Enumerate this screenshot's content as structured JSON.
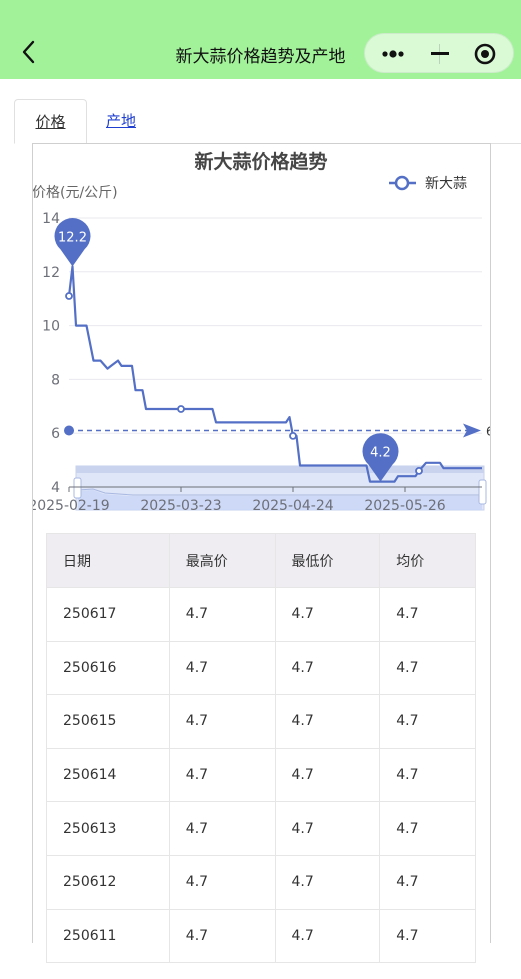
{
  "header": {
    "title": "新大蒜价格趋势及产地",
    "back_icon": "chevron-left-icon",
    "more_icon": "more-dots-icon",
    "minimize_icon": "minimize-icon",
    "close_icon": "target-close-icon",
    "bg_color": "#a2f29a"
  },
  "tabs": [
    {
      "label": "价格",
      "active": true
    },
    {
      "label": "产地",
      "active": false
    }
  ],
  "chart_data": {
    "type": "line",
    "title": "新大蒜价格趋势",
    "ylabel": "价格(元/公斤)",
    "legend": "新大蒜",
    "legend_position": "top-right",
    "ylim": [
      4,
      14
    ],
    "yticks": [
      4,
      6,
      8,
      10,
      12,
      14
    ],
    "xticks": [
      "2025-02-19",
      "2025-03-23",
      "2025-04-24",
      "2025-05-26"
    ],
    "series_color": "#5470c6",
    "max_marker": {
      "label": "12.2",
      "value": 12.2
    },
    "min_marker": {
      "label": "4.2",
      "value": 4.2
    },
    "average_line": {
      "value": 6.1,
      "label": "6"
    },
    "series": [
      {
        "name": "新大蒜",
        "points": [
          [
            "2025-02-19",
            11.1
          ],
          [
            "2025-02-20",
            12.2
          ],
          [
            "2025-02-21",
            10.0
          ],
          [
            "2025-02-24",
            10.0
          ],
          [
            "2025-02-26",
            8.7
          ],
          [
            "2025-02-28",
            8.7
          ],
          [
            "2025-03-02",
            8.4
          ],
          [
            "2025-03-03",
            8.5
          ],
          [
            "2025-03-05",
            8.7
          ],
          [
            "2025-03-06",
            8.5
          ],
          [
            "2025-03-09",
            8.5
          ],
          [
            "2025-03-10",
            7.6
          ],
          [
            "2025-03-12",
            7.6
          ],
          [
            "2025-03-13",
            6.9
          ],
          [
            "2025-03-23",
            6.9
          ],
          [
            "2025-04-01",
            6.9
          ],
          [
            "2025-04-02",
            6.4
          ],
          [
            "2025-04-22",
            6.4
          ],
          [
            "2025-04-23",
            6.6
          ],
          [
            "2025-04-24",
            5.9
          ],
          [
            "2025-04-25",
            5.9
          ],
          [
            "2025-04-26",
            4.8
          ],
          [
            "2025-05-15",
            4.8
          ],
          [
            "2025-05-16",
            4.2
          ],
          [
            "2025-05-23",
            4.2
          ],
          [
            "2025-05-24",
            4.4
          ],
          [
            "2025-05-29",
            4.4
          ],
          [
            "2025-05-30",
            4.6
          ],
          [
            "2025-06-01",
            4.9
          ],
          [
            "2025-06-05",
            4.9
          ],
          [
            "2025-06-06",
            4.7
          ],
          [
            "2025-06-17",
            4.7
          ]
        ]
      }
    ]
  },
  "table": {
    "headers": [
      "日期",
      "最高价",
      "最低价",
      "均价"
    ],
    "rows": [
      [
        "250617",
        "4.7",
        "4.7",
        "4.7"
      ],
      [
        "250616",
        "4.7",
        "4.7",
        "4.7"
      ],
      [
        "250615",
        "4.7",
        "4.7",
        "4.7"
      ],
      [
        "250614",
        "4.7",
        "4.7",
        "4.7"
      ],
      [
        "250613",
        "4.7",
        "4.7",
        "4.7"
      ],
      [
        "250612",
        "4.7",
        "4.7",
        "4.7"
      ],
      [
        "250611",
        "4.7",
        "4.7",
        "4.7"
      ]
    ]
  }
}
